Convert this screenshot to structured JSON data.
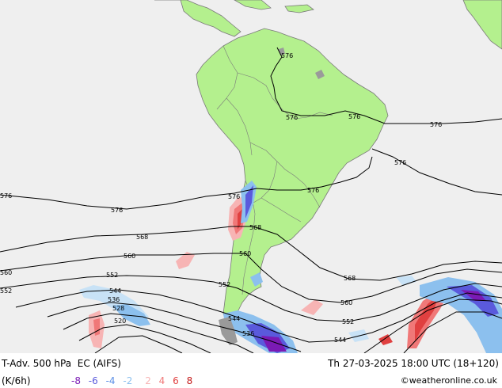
{
  "title": "T-Adv. 500 hPa",
  "model": "EC (AIFS)",
  "units": "(K/6h)",
  "datetime": "Th 27-03-2025 18:00 UTC (18+120)",
  "credit": "©weatheronline.co.uk",
  "colors": {
    "ocean": "#efefef",
    "land": "#b4f08e",
    "border": "#7a7a7a",
    "warm": [
      "#f7b4b4",
      "#f07878",
      "#e04040",
      "#c41a1a"
    ],
    "cold": [
      "#c8e2f6",
      "#8cc0ee",
      "#5a5adc",
      "#7a1ab4"
    ]
  },
  "legend": [
    {
      "label": "-8",
      "color": "#7a1ab4"
    },
    {
      "label": "-6",
      "color": "#5a5adc"
    },
    {
      "label": "-4",
      "color": "#5a8ee6"
    },
    {
      "label": "-2",
      "color": "#8cc0ee"
    },
    {
      "label": "2",
      "color": "#f7b4b4"
    },
    {
      "label": "4",
      "color": "#f07878"
    },
    {
      "label": "6",
      "color": "#e04040"
    },
    {
      "label": "8",
      "color": "#c41a1a"
    }
  ],
  "contour_labels": [
    {
      "id": "l576a",
      "text": "576"
    },
    {
      "id": "l576b",
      "text": "576"
    },
    {
      "id": "l576c",
      "text": "576"
    },
    {
      "id": "l576d",
      "text": "576"
    },
    {
      "id": "l576e",
      "text": "576"
    },
    {
      "id": "l576f",
      "text": "576"
    },
    {
      "id": "l576g",
      "text": "576"
    },
    {
      "id": "l576h",
      "text": "576"
    },
    {
      "id": "l576i",
      "text": "576"
    },
    {
      "id": "l568a",
      "text": "568"
    },
    {
      "id": "l568b",
      "text": "568"
    },
    {
      "id": "l568c",
      "text": "568"
    },
    {
      "id": "l560a",
      "text": "560"
    },
    {
      "id": "l560b",
      "text": "560"
    },
    {
      "id": "l560c",
      "text": "560"
    },
    {
      "id": "l560d",
      "text": "560"
    },
    {
      "id": "l552a",
      "text": "552"
    },
    {
      "id": "l552b",
      "text": "552"
    },
    {
      "id": "l552c",
      "text": "552"
    },
    {
      "id": "l552d",
      "text": "552"
    },
    {
      "id": "l544a",
      "text": "544"
    },
    {
      "id": "l544b",
      "text": "544"
    },
    {
      "id": "l544c",
      "text": "544"
    },
    {
      "id": "l536a",
      "text": "536"
    },
    {
      "id": "l536b",
      "text": "536"
    },
    {
      "id": "l528a",
      "text": "528"
    },
    {
      "id": "l520a",
      "text": "520"
    }
  ]
}
